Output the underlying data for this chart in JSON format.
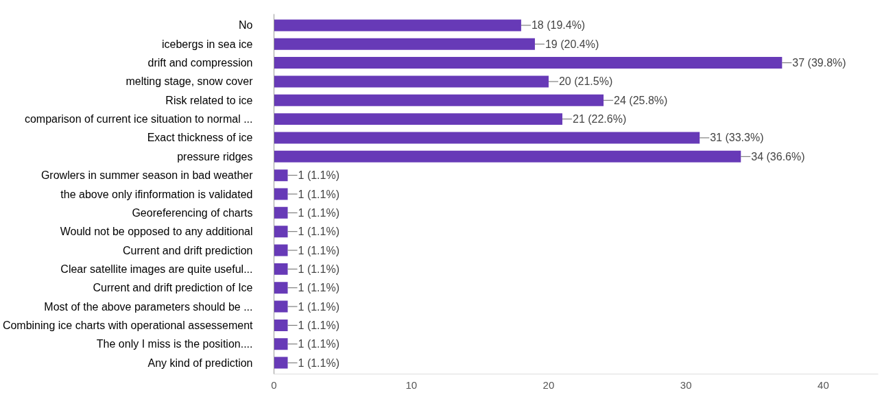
{
  "chart_data": {
    "type": "bar",
    "orientation": "horizontal",
    "categories": [
      "No",
      "icebergs in sea ice",
      "drift and compression",
      "melting stage, snow cover",
      "Risk related to ice",
      "comparison of current ice situation to normal ...",
      "Exact thickness of ice",
      "pressure ridges",
      "Growlers in summer season in bad weather",
      "the above only ifinformation is validated",
      "Georeferencing of charts",
      "Would not be opposed to any additional",
      "Current and drift prediction",
      "Clear satellite images are quite useful...",
      "Current and drift prediction of Ice",
      "Most of the above parameters should be ...",
      "Combining ice charts with operational assessement",
      "The only I miss is the position....",
      "Any kind of prediction"
    ],
    "values": [
      18,
      19,
      37,
      20,
      24,
      21,
      31,
      34,
      1,
      1,
      1,
      1,
      1,
      1,
      1,
      1,
      1,
      1,
      1
    ],
    "value_labels": [
      "18 (19.4%)",
      "19 (20.4%)",
      "37 (39.8%)",
      "20 (21.5%)",
      "24 (25.8%)",
      "21 (22.6%)",
      "31 (33.3%)",
      "34 (36.6%)",
      "1 (1.1%)",
      "1 (1.1%)",
      "1 (1.1%)",
      "1 (1.1%)",
      "1 (1.1%)",
      "1 (1.1%)",
      "1 (1.1%)",
      "1 (1.1%)",
      "1 (1.1%)",
      "1 (1.1%)",
      "1 (1.1%)"
    ],
    "color": "#673ab7",
    "xlim": [
      0,
      44
    ],
    "xticks": [
      0,
      10,
      20,
      30,
      40
    ],
    "grid": false
  }
}
